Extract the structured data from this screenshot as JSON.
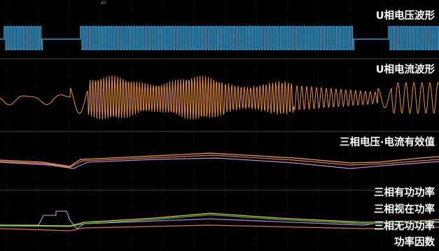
{
  "window": {
    "top_marker": "A0"
  },
  "panels": {
    "u_voltage": {
      "label": "U相电压波形",
      "color": "#3ab0ea"
    },
    "u_current": {
      "label": "U相电流波形",
      "color": "#f0913a"
    },
    "rms": {
      "label": "三相电压·电流有效值",
      "colors": [
        "#e8a34a",
        "#c08ad8",
        "#e07850"
      ]
    },
    "power": {
      "labels": {
        "active": "三相有功功率",
        "apparent": "三相视在功率",
        "reactive": "三相无功功率",
        "pf": "功率因数"
      },
      "colors": {
        "active": "#3fbf4f",
        "apparent": "#e8b84a",
        "reactive": "#d87060",
        "pf": "#b07ad0"
      }
    }
  },
  "grid_color": "#3a3a3a"
}
